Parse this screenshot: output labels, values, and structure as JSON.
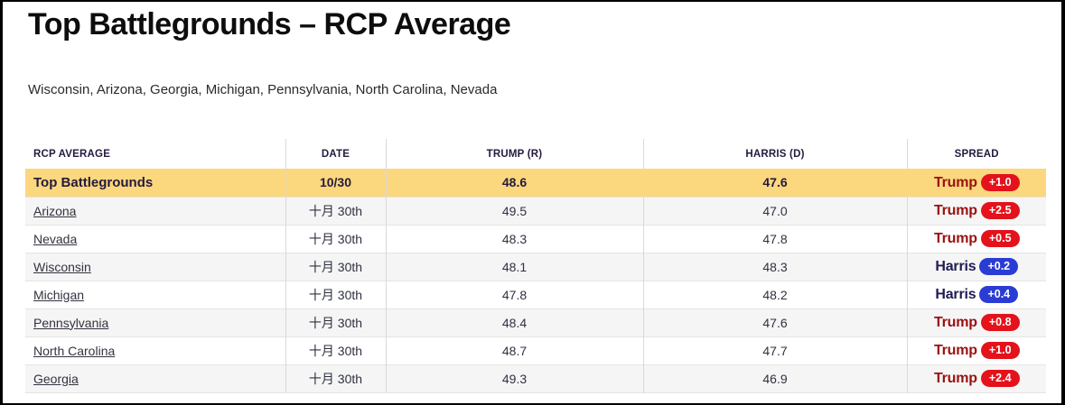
{
  "page": {
    "title": "Top Battlegrounds – RCP Average",
    "subtitle": "Wisconsin, Arizona, Georgia, Michigan, Pennsylvania, North Carolina, Nevada"
  },
  "table": {
    "columns": [
      "RCP AVERAGE",
      "DATE",
      "TRUMP (R)",
      "HARRIS (D)",
      "SPREAD"
    ],
    "summary_row": {
      "label": "Top Battlegrounds",
      "date": "10/30",
      "trump": "48.6",
      "harris": "47.6",
      "spread_leader": "Trump",
      "spread_value": "+1.0"
    },
    "rows": [
      {
        "state": "Arizona",
        "date": "十月 30th",
        "trump": "49.5",
        "harris": "47.0",
        "spread_leader": "Trump",
        "spread_value": "+2.5"
      },
      {
        "state": "Nevada",
        "date": "十月 30th",
        "trump": "48.3",
        "harris": "47.8",
        "spread_leader": "Trump",
        "spread_value": "+0.5"
      },
      {
        "state": "Wisconsin",
        "date": "十月 30th",
        "trump": "48.1",
        "harris": "48.3",
        "spread_leader": "Harris",
        "spread_value": "+0.2"
      },
      {
        "state": "Michigan",
        "date": "十月 30th",
        "trump": "47.8",
        "harris": "48.2",
        "spread_leader": "Harris",
        "spread_value": "+0.4"
      },
      {
        "state": "Pennsylvania",
        "date": "十月 30th",
        "trump": "48.4",
        "harris": "47.6",
        "spread_leader": "Trump",
        "spread_value": "+0.8"
      },
      {
        "state": "North Carolina",
        "date": "十月 30th",
        "trump": "48.7",
        "harris": "47.7",
        "spread_leader": "Trump",
        "spread_value": "+1.0"
      },
      {
        "state": "Georgia",
        "date": "十月 30th",
        "trump": "49.3",
        "harris": "46.9",
        "spread_leader": "Trump",
        "spread_value": "+2.4"
      }
    ]
  },
  "colors": {
    "highlight_row": "#FBD77E",
    "alt_row": "#F5F5F5",
    "header_text": "#241A3E",
    "body_text": "#2E3240",
    "link_text": "#37313F",
    "trump_text": "#9B100F",
    "harris_text": "#1F1B53",
    "trump_badge": "#E3121B",
    "harris_badge": "#2A3CD4",
    "divider": "#D9D9D9",
    "row_border": "#E4E4E4"
  }
}
